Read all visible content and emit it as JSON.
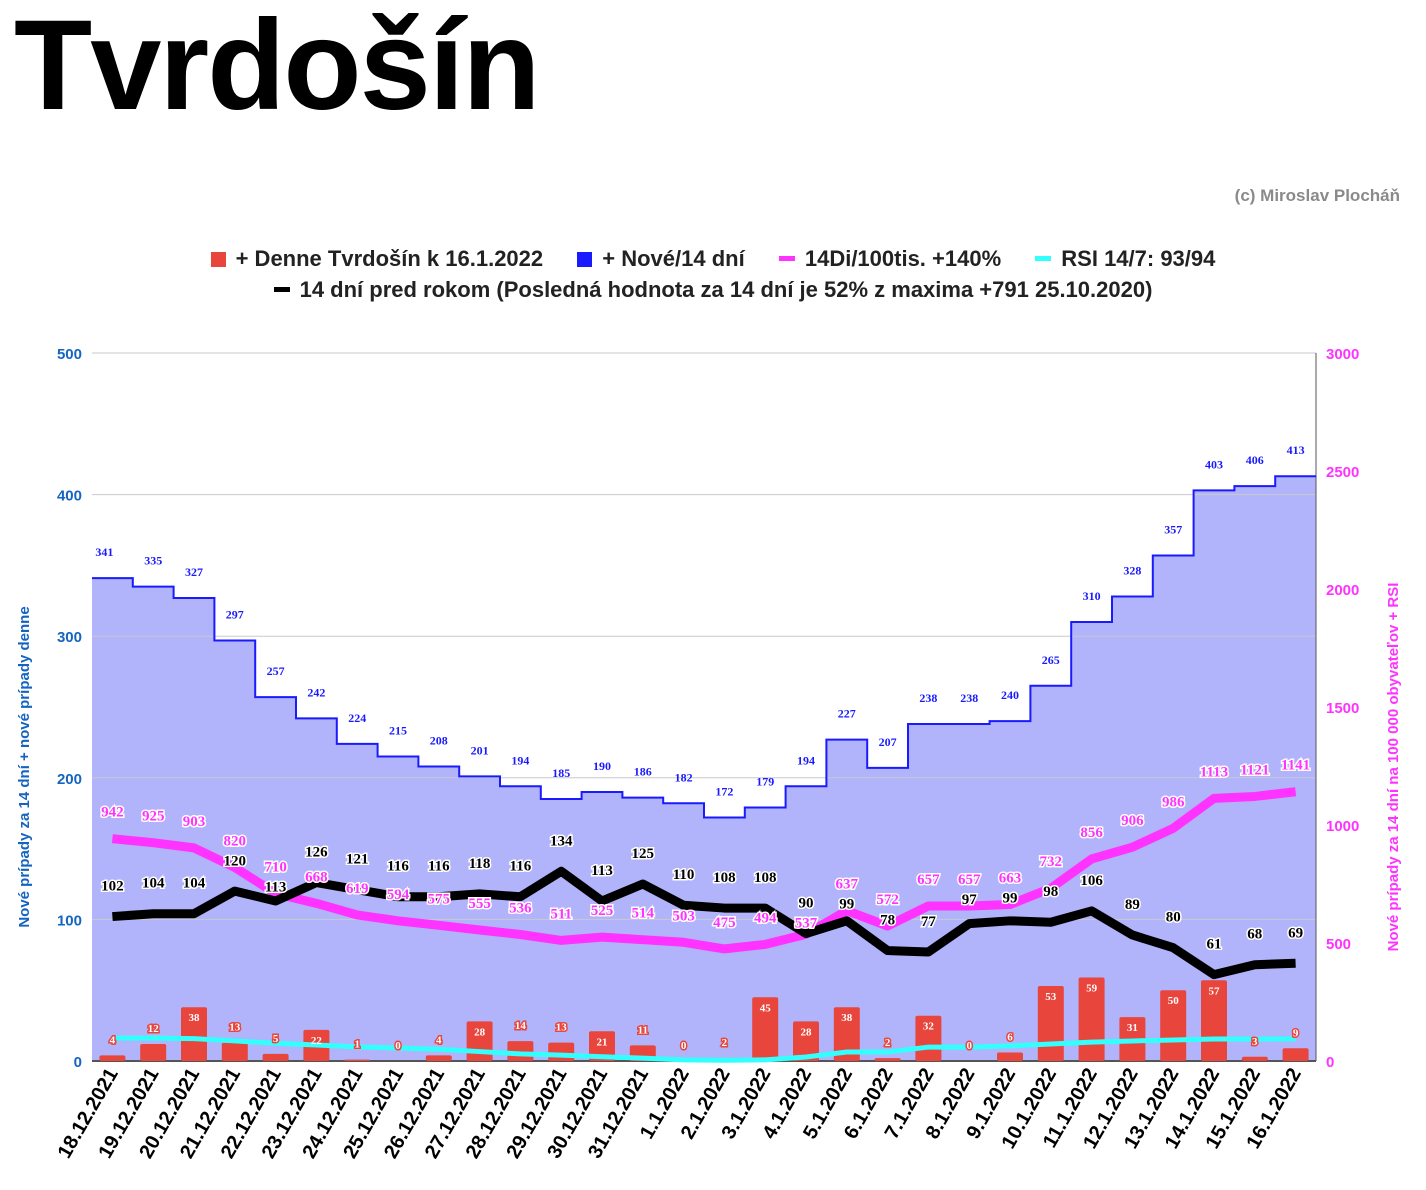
{
  "title": "Tvrdošín",
  "credit": "(c) Miroslav Plocháň",
  "chart_data": {
    "type": "bar+line",
    "categories": [
      "18.12.2021",
      "19.12.2021",
      "20.12.2021",
      "21.12.2021",
      "22.12.2021",
      "23.12.2021",
      "24.12.2021",
      "25.12.2021",
      "26.12.2021",
      "27.12.2021",
      "28.12.2021",
      "29.12.2021",
      "30.12.2021",
      "31.12.2021",
      "1.1.2022",
      "2.1.2022",
      "3.1.2022",
      "4.1.2022",
      "5.1.2022",
      "6.1.2022",
      "7.1.2022",
      "8.1.2022",
      "9.1.2022",
      "10.1.2022",
      "11.1.2022",
      "12.1.2022",
      "13.1.2022",
      "14.1.2022",
      "15.1.2022",
      "16.1.2022"
    ],
    "series": [
      {
        "name": "+ Denne Tvrdošín k 16.1.2022",
        "type": "bar",
        "axis": "left",
        "color": "#e8453c",
        "values": [
          4,
          12,
          38,
          13,
          5,
          22,
          1,
          0,
          4,
          28,
          14,
          13,
          21,
          11,
          0,
          2,
          45,
          28,
          38,
          2,
          32,
          0,
          6,
          53,
          59,
          31,
          50,
          57,
          3,
          9
        ]
      },
      {
        "name": "+ Nové/14 dní",
        "type": "stepped-area",
        "axis": "left",
        "color": "#1a1aff",
        "values": [
          341,
          335,
          327,
          297,
          257,
          242,
          224,
          215,
          208,
          201,
          194,
          185,
          190,
          186,
          182,
          172,
          179,
          194,
          227,
          207,
          238,
          238,
          240,
          265,
          310,
          328,
          357,
          403,
          406,
          413
        ]
      },
      {
        "name": "14Di/100tis. +140%",
        "type": "line",
        "axis": "right",
        "color": "#ff33ff",
        "values": [
          942,
          925,
          903,
          820,
          710,
          668,
          619,
          594,
          575,
          555,
          536,
          511,
          525,
          514,
          503,
          475,
          494,
          537,
          637,
          572,
          657,
          657,
          663,
          732,
          856,
          906,
          986,
          1113,
          1121,
          1141
        ]
      },
      {
        "name": "RSI 14/7: 93/94",
        "type": "line",
        "axis": "right",
        "color": "#33ffff",
        "values": [
          97,
          97,
          95,
          85,
          75,
          68,
          60,
          55,
          50,
          40,
          30,
          25,
          18,
          12,
          5,
          3,
          5,
          17,
          38,
          38,
          59,
          59,
          64,
          72,
          80,
          85,
          89,
          93,
          93,
          94
        ]
      },
      {
        "name": "14 dní pred rokom (Posledná hodnota za 14 dní je 52% z maxima +791 25.10.2020)",
        "type": "line",
        "axis": "left",
        "color": "#000000",
        "values": [
          102,
          104,
          104,
          120,
          113,
          126,
          121,
          116,
          116,
          118,
          116,
          134,
          113,
          125,
          110,
          108,
          108,
          90,
          99,
          78,
          77,
          97,
          99,
          98,
          106,
          89,
          80,
          61,
          68,
          69
        ]
      }
    ],
    "ylabel": "Nové prípady za 14 dní + nové prípady denne",
    "y2label": "Nové prípady za 14 dní na 100 000 obyvateľov + RSI",
    "ylim": [
      0,
      500
    ],
    "y2lim": [
      0,
      3000
    ],
    "yticks": [
      "0",
      "100",
      "200",
      "300",
      "400",
      "500"
    ],
    "y2ticks": [
      "0",
      "500",
      "1000",
      "1500",
      "2000",
      "2500",
      "3000"
    ],
    "grid": true,
    "legend": "top"
  }
}
